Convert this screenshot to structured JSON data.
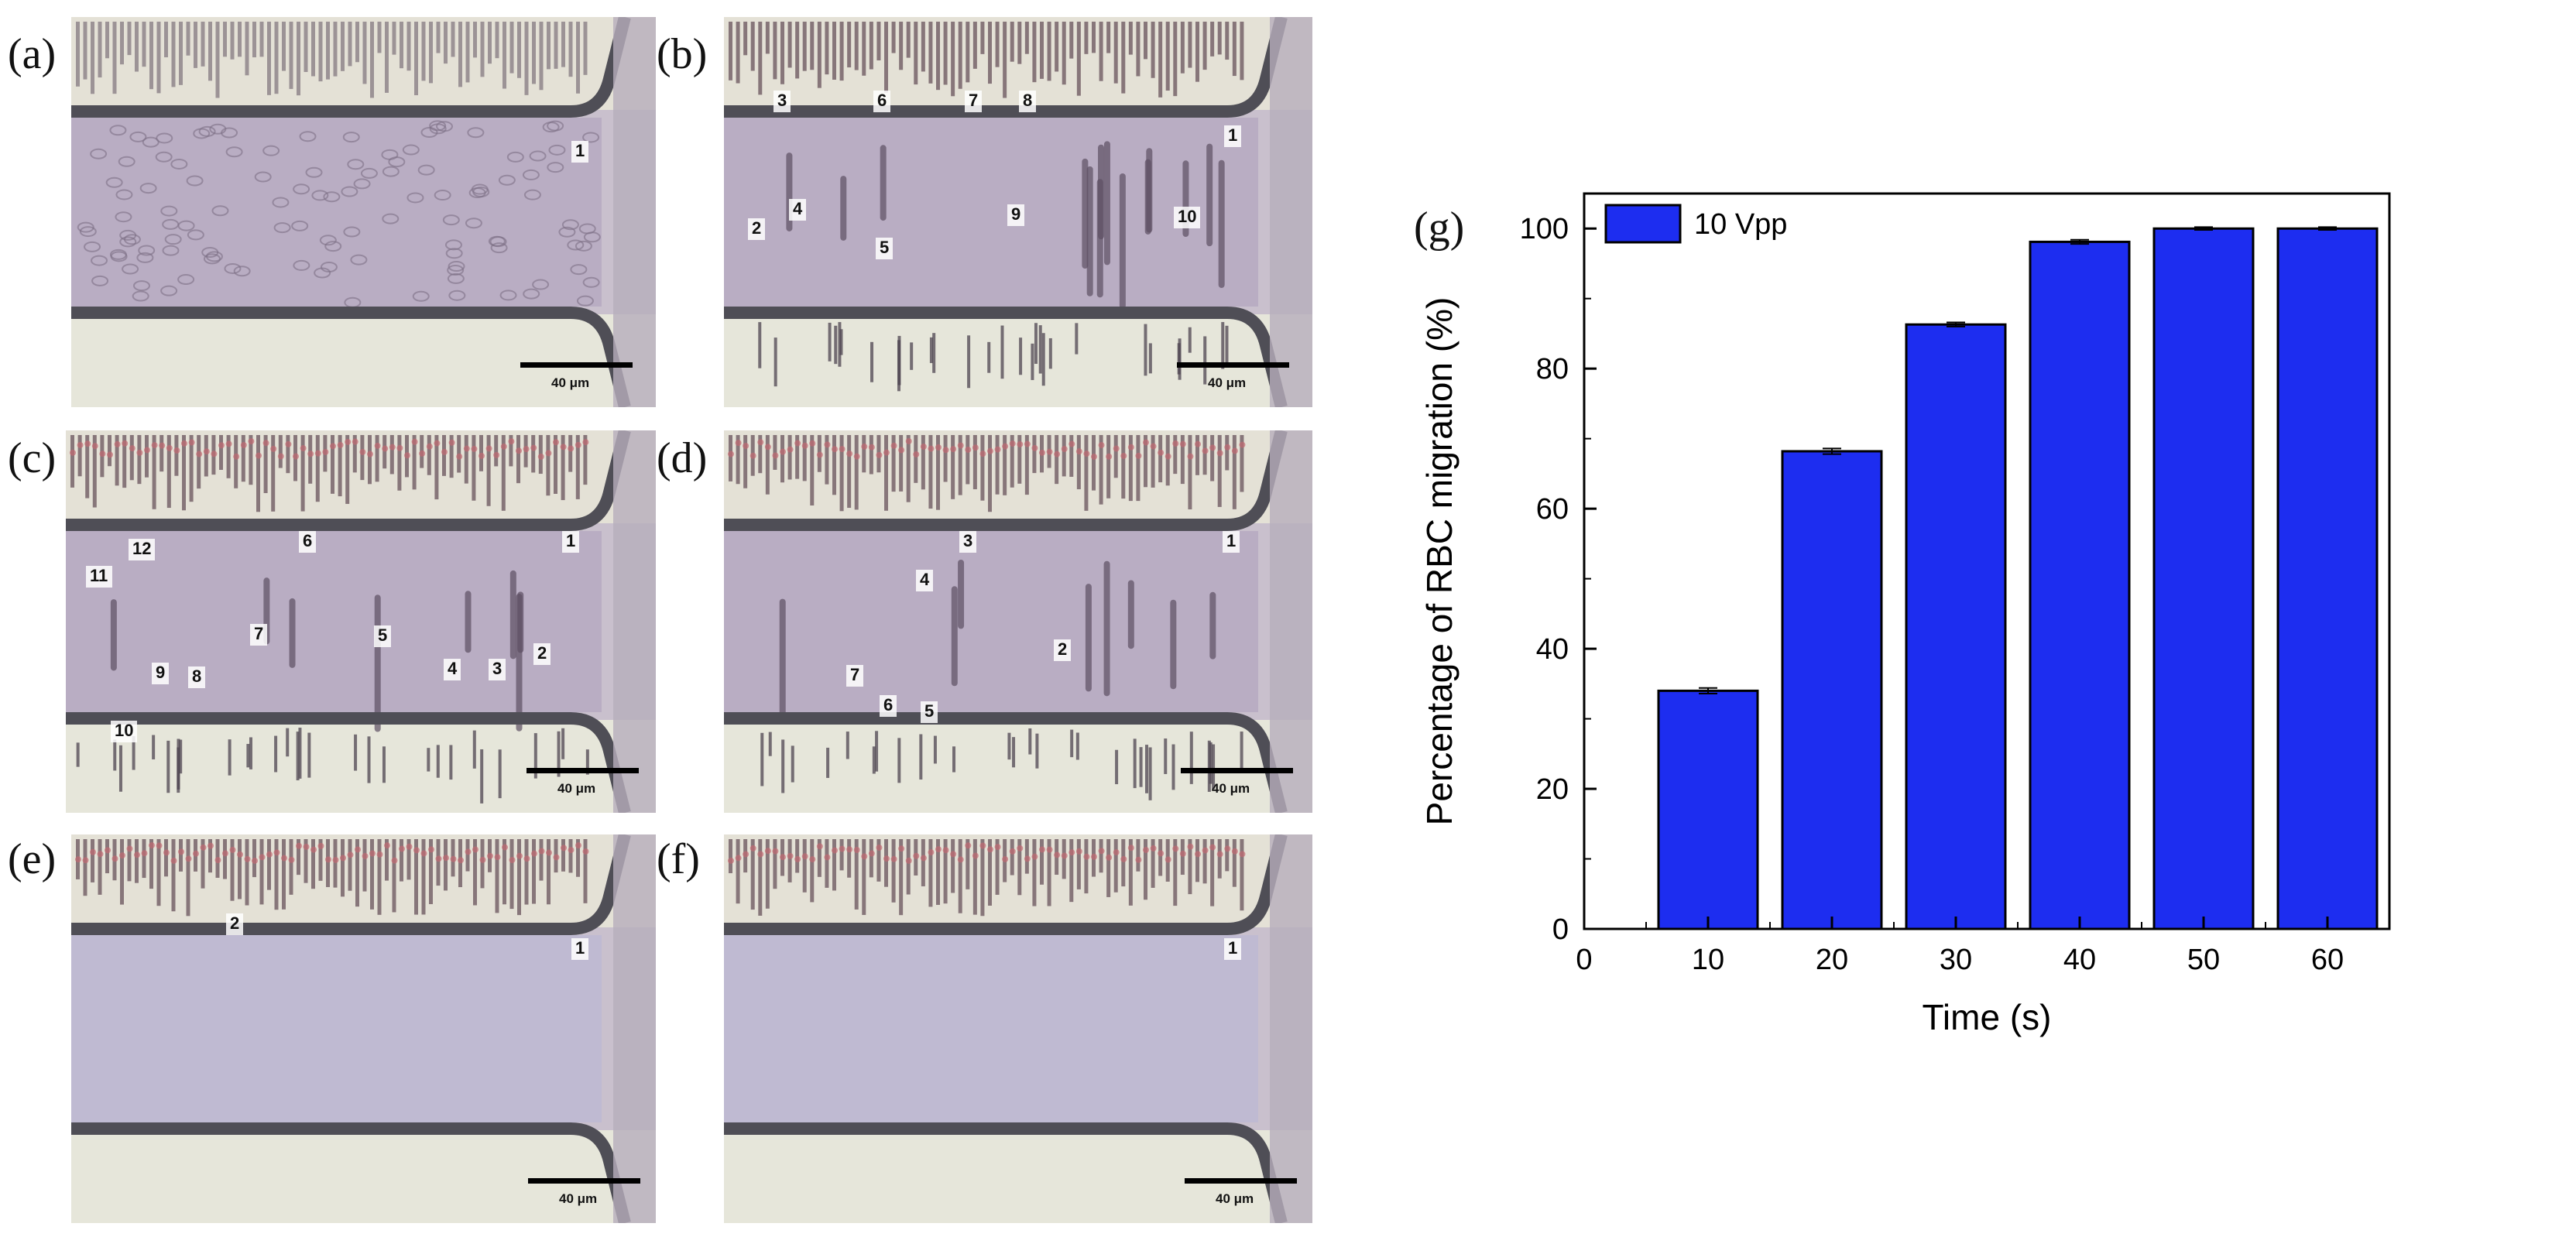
{
  "panels": [
    {
      "label": "(a)",
      "numbers": [
        "1"
      ],
      "scale": "40 μm"
    },
    {
      "label": "(b)",
      "numbers": [
        "3",
        "6",
        "7",
        "8",
        "1",
        "2",
        "4",
        "5",
        "9",
        "10"
      ],
      "scale": "40 μm"
    },
    {
      "label": "(c)",
      "numbers": [
        "12",
        "6",
        "1",
        "11",
        "7",
        "5",
        "9",
        "8",
        "4",
        "3",
        "2",
        "10"
      ],
      "scale": "40 μm"
    },
    {
      "label": "(d)",
      "numbers": [
        "3",
        "1",
        "4",
        "2",
        "7",
        "6",
        "5"
      ],
      "scale": "40 μm"
    },
    {
      "label": "(e)",
      "numbers": [
        "2",
        "1"
      ],
      "scale": "40 μm"
    },
    {
      "label": "(f)",
      "numbers": [
        "1"
      ],
      "scale": "40 μm"
    }
  ],
  "chart_panel_label": "(g)",
  "chart_data": {
    "type": "bar",
    "categories": [
      "10",
      "20",
      "30",
      "40",
      "50",
      "60"
    ],
    "series": [
      {
        "name": "10 Vpp",
        "values": [
          34,
          68.2,
          86.3,
          98.1,
          100,
          100
        ],
        "errors": [
          0.4,
          0.4,
          0.3,
          0.3,
          0.2,
          0.2
        ],
        "color": "#1d2df0"
      }
    ],
    "xlabel": "Time (s)",
    "ylabel": "Percentage of RBC migration (%)",
    "xticks": [
      "0",
      "10",
      "20",
      "30",
      "40",
      "50",
      "60"
    ],
    "yticks": [
      "0",
      "20",
      "40",
      "60",
      "80",
      "100"
    ],
    "xlim": [
      0,
      65
    ],
    "ylim": [
      0,
      105
    ],
    "legend_position": "top-left",
    "grid": false
  }
}
